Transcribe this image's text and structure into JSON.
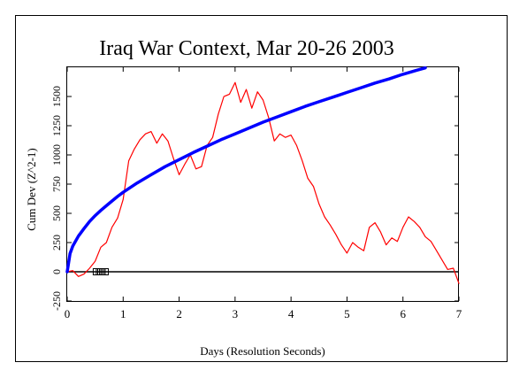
{
  "chart_data": {
    "type": "line",
    "title": "Iraq War Context, Mar 20-26 2003",
    "xlabel": "Days (Resolution Seconds)",
    "ylabel": "Cum Dev (Z^2-1)",
    "xlim": [
      0,
      7
    ],
    "ylim": [
      -250,
      1750
    ],
    "x_ticks": [
      0,
      1,
      2,
      3,
      4,
      5,
      6,
      7
    ],
    "y_ticks": [
      -250,
      0,
      250,
      500,
      750,
      1000,
      1250,
      1500
    ],
    "grid": false,
    "colors": {
      "observed": "#ff0000",
      "envelope": "#0000ff",
      "baseline": "#000000"
    },
    "series": [
      {
        "key": "observed",
        "x": [
          0,
          0.1,
          0.2,
          0.3,
          0.4,
          0.5,
          0.6,
          0.7,
          0.8,
          0.9,
          1.0,
          1.1,
          1.2,
          1.3,
          1.4,
          1.5,
          1.6,
          1.7,
          1.8,
          1.9,
          2.0,
          2.1,
          2.2,
          2.3,
          2.4,
          2.5,
          2.6,
          2.7,
          2.8,
          2.9,
          3.0,
          3.1,
          3.2,
          3.3,
          3.4,
          3.5,
          3.6,
          3.7,
          3.8,
          3.9,
          4.0,
          4.1,
          4.2,
          4.3,
          4.4,
          4.5,
          4.6,
          4.7,
          4.8,
          4.9,
          5.0,
          5.1,
          5.2,
          5.3,
          5.4,
          5.5,
          5.6,
          5.7,
          5.8,
          5.9,
          6.0,
          6.1,
          6.2,
          6.3,
          6.4,
          6.5,
          6.6,
          6.7,
          6.8,
          6.9,
          7.0
        ],
        "y": [
          0,
          10,
          -40,
          -20,
          30,
          90,
          210,
          250,
          380,
          460,
          620,
          950,
          1050,
          1130,
          1180,
          1200,
          1100,
          1180,
          1120,
          970,
          830,
          920,
          1000,
          880,
          900,
          1080,
          1150,
          1350,
          1500,
          1520,
          1620,
          1450,
          1560,
          1400,
          1540,
          1470,
          1320,
          1120,
          1180,
          1150,
          1170,
          1080,
          950,
          800,
          730,
          580,
          470,
          400,
          320,
          230,
          160,
          250,
          210,
          180,
          380,
          420,
          340,
          230,
          290,
          260,
          380,
          470,
          430,
          380,
          300,
          260,
          180,
          100,
          20,
          30,
          -100
        ]
      },
      {
        "key": "envelope",
        "x": [
          0,
          0.05,
          0.1,
          0.2,
          0.3,
          0.4,
          0.5,
          0.6,
          0.7,
          0.8,
          0.9,
          1.0,
          1.25,
          1.5,
          1.75,
          2.0,
          2.25,
          2.5,
          2.75,
          3.0,
          3.25,
          3.5,
          3.75,
          4.0,
          4.25,
          4.5,
          4.75,
          5.0,
          5.25,
          5.5,
          5.75,
          6.0,
          6.25,
          6.4
        ],
        "y": [
          0,
          155,
          220,
          305,
          370,
          430,
          480,
          525,
          565,
          605,
          645,
          680,
          760,
          830,
          900,
          960,
          1020,
          1075,
          1130,
          1180,
          1230,
          1280,
          1325,
          1370,
          1415,
          1455,
          1495,
          1535,
          1575,
          1615,
          1650,
          1690,
          1725,
          1745
        ]
      }
    ],
    "baseline_y": 0,
    "markers": {
      "x": [
        0.52,
        0.6,
        0.68
      ],
      "y": 0
    }
  }
}
